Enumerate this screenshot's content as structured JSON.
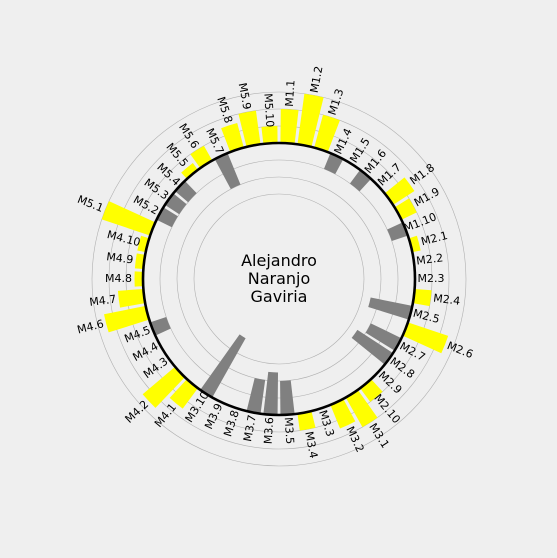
{
  "chart_data": {
    "type": "radial-bar",
    "title_lines": [
      "Alejandro",
      "Naranjo",
      "Gaviria"
    ],
    "baseline": 0,
    "grid_levels": [
      -3,
      -2,
      -1,
      0,
      1,
      2,
      3
    ],
    "colors": {
      "positive": "#ffff00",
      "negative": "#808080",
      "baseline": "#000000",
      "grid": "#b0b0b0"
    },
    "categories": [
      "M1.1",
      "M1.2",
      "M1.3",
      "M1.4",
      "M1.5",
      "M1.6",
      "M1.7",
      "M1.8",
      "M1.9",
      "M1.10",
      "M2.1",
      "M2.2",
      "M2.3",
      "M2.4",
      "M2.5",
      "M2.6",
      "M2.7",
      "M2.8",
      "M2.9",
      "M2.10",
      "M3.1",
      "M3.2",
      "M3.3",
      "M3.4",
      "M3.5",
      "M3.6",
      "M3.7",
      "M3.8",
      "M3.9",
      "M3.10",
      "M4.1",
      "M4.2",
      "M4.3",
      "M4.4",
      "M4.5",
      "M4.6",
      "M4.7",
      "M4.8",
      "M4.9",
      "M4.10",
      "M5.1",
      "M5.2",
      "M5.3",
      "M5.4",
      "M5.5",
      "M5.6",
      "M5.7",
      "M5.8",
      "M5.9",
      "M5.10"
    ],
    "values": [
      2,
      3,
      2,
      -1,
      0,
      -1,
      0,
      1.5,
      1,
      -1,
      0.5,
      0,
      0,
      1,
      -2.5,
      2.5,
      -2,
      -2.5,
      0,
      1,
      2,
      1.5,
      0,
      1,
      -2,
      -2.5,
      -2,
      0,
      0,
      -4,
      1.5,
      2.5,
      0,
      0,
      -1,
      2.5,
      1.5,
      0.5,
      0.5,
      0.5,
      3,
      -1,
      -1,
      -1,
      0.5,
      1,
      -2,
      1.5,
      2,
      1
    ]
  }
}
